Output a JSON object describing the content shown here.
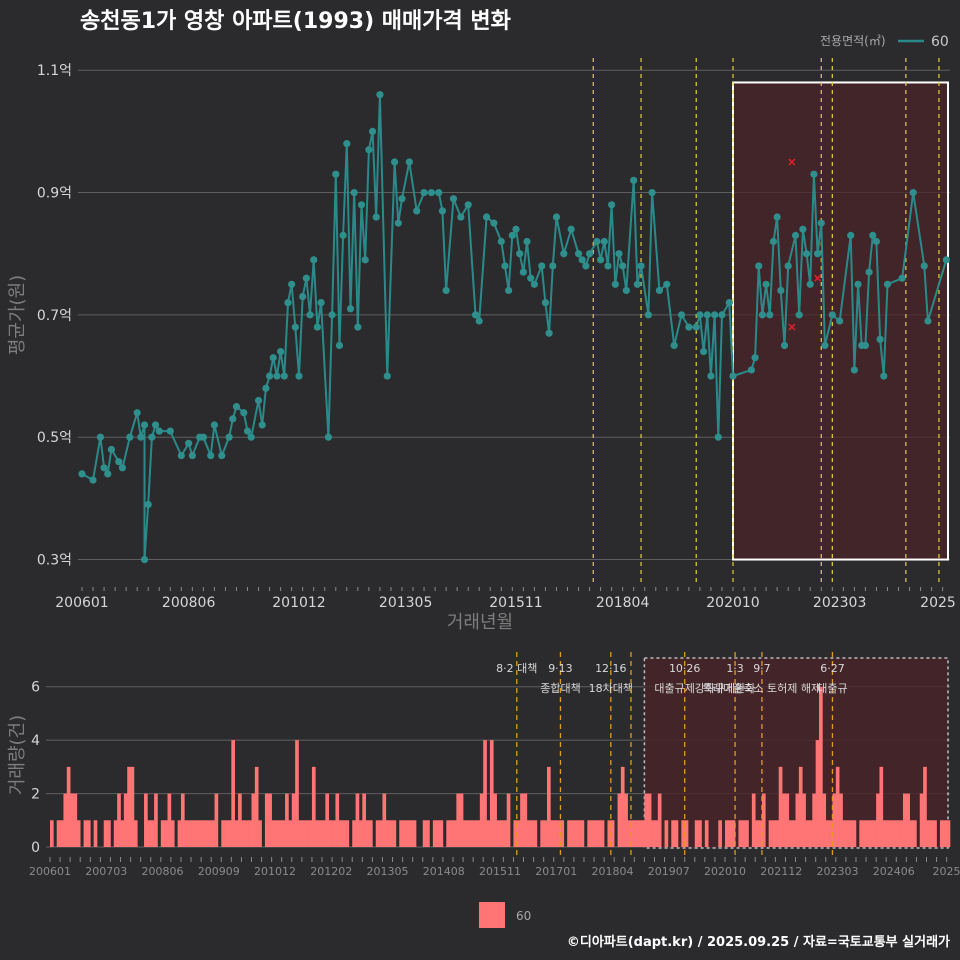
{
  "title": "송천동1가 영창 아파트(1993) 매매가격 변화",
  "footer": "©디아파트(dapt.kr) / 2025.09.25 / 자료=국토교통부 실거래가",
  "colors": {
    "background": "#2b2b2d",
    "price_line": "#2a8a8a",
    "price_point": "#2f8f8c",
    "bar": "#ff7575",
    "highlight_fill": "#4a2428",
    "policy_line_top": "#e5d334",
    "policy_line_bottom": "#e39a1c",
    "outlier": "#e0212a"
  },
  "chart_data": [
    {
      "type": "line",
      "title": "송천동1가 영창 아파트(1993) 매매가격 변화",
      "xlabel": "거래년월",
      "ylabel": "평균가(원)",
      "x_tick_labels": [
        "200601",
        "200806",
        "201012",
        "201305",
        "201511",
        "201804",
        "202010",
        "202303",
        "2025"
      ],
      "y_tick_labels": [
        "0.3억",
        "0.5억",
        "0.7억",
        "0.9억",
        "1.1억"
      ],
      "y_ticks": [
        0.3,
        0.5,
        0.7,
        0.9,
        1.1
      ],
      "ylim": [
        0.26,
        1.12
      ],
      "xlim": [
        "2006-01",
        "2025-09"
      ],
      "grid": true,
      "legend": {
        "title": "전용면적(㎡)",
        "entries": [
          "60"
        ],
        "placement": "top-right"
      },
      "highlight_range": [
        "2020-10",
        "2025-09"
      ],
      "policy_dates": [
        "2017-08",
        "2018-09",
        "2019-12",
        "2020-10",
        "2022-10",
        "2023-01",
        "2024-09",
        "2025-06"
      ],
      "outliers": [
        {
          "x": "2022-02",
          "y": 0.95
        },
        {
          "x": "2022-02",
          "y": 0.68
        },
        {
          "x": "2022-09",
          "y": 0.76
        }
      ],
      "series": [
        {
          "name": "60",
          "points": [
            [
              "2006-01",
              0.44
            ],
            [
              "2006-04",
              0.43
            ],
            [
              "2006-06",
              0.5
            ],
            [
              "2006-07",
              0.45
            ],
            [
              "2006-08",
              0.44
            ],
            [
              "2006-09",
              0.48
            ],
            [
              "2006-11",
              0.46
            ],
            [
              "2006-12",
              0.45
            ],
            [
              "2007-02",
              0.5
            ],
            [
              "2007-04",
              0.54
            ],
            [
              "2007-05",
              0.5
            ],
            [
              "2007-06",
              0.52
            ],
            [
              "2007-07",
              0.39
            ],
            [
              "2007-08",
              0.5
            ],
            [
              "2007-09",
              0.52
            ],
            [
              "2007-10",
              0.51
            ],
            [
              "2007-06",
              0.3
            ],
            [
              "2008-01",
              0.51
            ],
            [
              "2008-04",
              0.47
            ],
            [
              "2008-06",
              0.49
            ],
            [
              "2008-07",
              0.47
            ],
            [
              "2008-09",
              0.5
            ],
            [
              "2008-10",
              0.5
            ],
            [
              "2008-12",
              0.47
            ],
            [
              "2009-01",
              0.52
            ],
            [
              "2009-03",
              0.47
            ],
            [
              "2009-05",
              0.5
            ],
            [
              "2009-06",
              0.53
            ],
            [
              "2009-07",
              0.55
            ],
            [
              "2009-09",
              0.54
            ],
            [
              "2009-10",
              0.51
            ],
            [
              "2009-11",
              0.5
            ],
            [
              "2010-01",
              0.56
            ],
            [
              "2010-02",
              0.52
            ],
            [
              "2010-03",
              0.58
            ],
            [
              "2010-04",
              0.6
            ],
            [
              "2010-05",
              0.63
            ],
            [
              "2010-06",
              0.6
            ],
            [
              "2010-07",
              0.64
            ],
            [
              "2010-08",
              0.6
            ],
            [
              "2010-09",
              0.72
            ],
            [
              "2010-10",
              0.75
            ],
            [
              "2010-11",
              0.68
            ],
            [
              "2010-12",
              0.6
            ],
            [
              "2011-01",
              0.73
            ],
            [
              "2011-02",
              0.76
            ],
            [
              "2011-03",
              0.7
            ],
            [
              "2011-04",
              0.79
            ],
            [
              "2011-05",
              0.68
            ],
            [
              "2011-06",
              0.72
            ],
            [
              "2011-08",
              0.5
            ],
            [
              "2011-09",
              0.7
            ],
            [
              "2011-10",
              0.93
            ],
            [
              "2011-11",
              0.65
            ],
            [
              "2011-12",
              0.83
            ],
            [
              "2012-01",
              0.98
            ],
            [
              "2012-02",
              0.71
            ],
            [
              "2012-03",
              0.9
            ],
            [
              "2012-04",
              0.68
            ],
            [
              "2012-05",
              0.88
            ],
            [
              "2012-06",
              0.79
            ],
            [
              "2012-07",
              0.97
            ],
            [
              "2012-08",
              1.0
            ],
            [
              "2012-09",
              0.86
            ],
            [
              "2012-10",
              1.06
            ],
            [
              "2012-12",
              0.6
            ],
            [
              "2013-02",
              0.95
            ],
            [
              "2013-03",
              0.85
            ],
            [
              "2013-04",
              0.89
            ],
            [
              "2013-06",
              0.95
            ],
            [
              "2013-08",
              0.87
            ],
            [
              "2013-10",
              0.9
            ],
            [
              "2013-12",
              0.9
            ],
            [
              "2014-02",
              0.9
            ],
            [
              "2014-03",
              0.87
            ],
            [
              "2014-04",
              0.74
            ],
            [
              "2014-06",
              0.89
            ],
            [
              "2014-08",
              0.86
            ],
            [
              "2014-10",
              0.88
            ],
            [
              "2014-12",
              0.7
            ],
            [
              "2015-01",
              0.69
            ],
            [
              "2015-03",
              0.86
            ],
            [
              "2015-05",
              0.85
            ],
            [
              "2015-07",
              0.82
            ],
            [
              "2015-08",
              0.78
            ],
            [
              "2015-09",
              0.74
            ],
            [
              "2015-10",
              0.83
            ],
            [
              "2015-11",
              0.84
            ],
            [
              "2015-12",
              0.8
            ],
            [
              "2016-01",
              0.77
            ],
            [
              "2016-02",
              0.82
            ],
            [
              "2016-03",
              0.76
            ],
            [
              "2016-04",
              0.75
            ],
            [
              "2016-06",
              0.78
            ],
            [
              "2016-07",
              0.72
            ],
            [
              "2016-08",
              0.67
            ],
            [
              "2016-09",
              0.78
            ],
            [
              "2016-10",
              0.86
            ],
            [
              "2016-12",
              0.8
            ],
            [
              "2017-02",
              0.84
            ],
            [
              "2017-04",
              0.8
            ],
            [
              "2017-05",
              0.79
            ],
            [
              "2017-06",
              0.78
            ],
            [
              "2017-07",
              0.8
            ],
            [
              "2017-09",
              0.82
            ],
            [
              "2017-10",
              0.79
            ],
            [
              "2017-11",
              0.82
            ],
            [
              "2017-12",
              0.78
            ],
            [
              "2018-01",
              0.88
            ],
            [
              "2018-02",
              0.75
            ],
            [
              "2018-03",
              0.8
            ],
            [
              "2018-04",
              0.78
            ],
            [
              "2018-05",
              0.74
            ],
            [
              "2018-07",
              0.92
            ],
            [
              "2018-08",
              0.75
            ],
            [
              "2018-09",
              0.78
            ],
            [
              "2018-11",
              0.7
            ],
            [
              "2018-12",
              0.9
            ],
            [
              "2019-02",
              0.74
            ],
            [
              "2019-04",
              0.75
            ],
            [
              "2019-06",
              0.65
            ],
            [
              "2019-08",
              0.7
            ],
            [
              "2019-10",
              0.68
            ],
            [
              "2019-12",
              0.68
            ],
            [
              "2020-01",
              0.7
            ],
            [
              "2020-02",
              0.64
            ],
            [
              "2020-03",
              0.7
            ],
            [
              "2020-04",
              0.6
            ],
            [
              "2020-05",
              0.7
            ],
            [
              "2020-06",
              0.5
            ],
            [
              "2020-07",
              0.7
            ],
            [
              "2020-09",
              0.72
            ],
            [
              "2020-10",
              0.6
            ],
            [
              "2021-03",
              0.61
            ],
            [
              "2021-04",
              0.63
            ],
            [
              "2021-05",
              0.78
            ],
            [
              "2021-06",
              0.7
            ],
            [
              "2021-07",
              0.75
            ],
            [
              "2021-08",
              0.7
            ],
            [
              "2021-09",
              0.82
            ],
            [
              "2021-10",
              0.86
            ],
            [
              "2021-11",
              0.74
            ],
            [
              "2021-12",
              0.65
            ],
            [
              "2022-01",
              0.78
            ],
            [
              "2022-03",
              0.83
            ],
            [
              "2022-04",
              0.7
            ],
            [
              "2022-05",
              0.84
            ],
            [
              "2022-06",
              0.8
            ],
            [
              "2022-07",
              0.75
            ],
            [
              "2022-08",
              0.93
            ],
            [
              "2022-09",
              0.8
            ],
            [
              "2022-10",
              0.85
            ],
            [
              "2022-11",
              0.65
            ],
            [
              "2023-01",
              0.7
            ],
            [
              "2023-03",
              0.69
            ],
            [
              "2023-06",
              0.83
            ],
            [
              "2023-07",
              0.61
            ],
            [
              "2023-08",
              0.75
            ],
            [
              "2023-09",
              0.65
            ],
            [
              "2023-10",
              0.65
            ],
            [
              "2023-11",
              0.77
            ],
            [
              "2023-12",
              0.83
            ],
            [
              "2024-01",
              0.82
            ],
            [
              "2024-02",
              0.66
            ],
            [
              "2024-03",
              0.6
            ],
            [
              "2024-04",
              0.75
            ],
            [
              "2024-08",
              0.76
            ],
            [
              "2024-11",
              0.9
            ],
            [
              "2025-02",
              0.78
            ],
            [
              "2025-03",
              0.69
            ],
            [
              "2025-08",
              0.79
            ]
          ]
        }
      ]
    },
    {
      "type": "bar",
      "ylabel": "거래량(건)",
      "x_tick_labels": [
        "200601",
        "200703",
        "200806",
        "200909",
        "201012",
        "201202",
        "201305",
        "201408",
        "201511",
        "201701",
        "201804",
        "201907",
        "202010",
        "202112",
        "202303",
        "202406",
        "20250"
      ],
      "y_tick_labels": [
        "0",
        "2",
        "4",
        "6"
      ],
      "ylim": [
        0,
        7
      ],
      "legend": {
        "entries": [
          "60"
        ],
        "placement": "bottom"
      },
      "highlight_range": [
        "2020-10",
        "2025-09"
      ],
      "policy_annotations": [
        {
          "date": "2017-08",
          "label": "8·2 대책"
        },
        {
          "date": "2018-09",
          "label": "9·13",
          "label2": "종합대책"
        },
        {
          "date": "2019-12",
          "label": "12·16",
          "label2": "18차대책"
        },
        {
          "date": "2020-06",
          "label": ""
        },
        {
          "date": "2021-10",
          "label": "10·26",
          "label2": "대출규제강화"
        },
        {
          "date": "2023-01",
          "label": "1·3",
          "label2": "규제완화"
        },
        {
          "date": "2023-09",
          "label": "9·7",
          "label2": "특례대출축소 토허제 해제"
        },
        {
          "date": "2025-06",
          "label": "6·27",
          "label2": "대출규"
        }
      ],
      "series": [
        {
          "name": "60",
          "monthly_counts_from_2006_01": [
            1,
            0,
            1,
            1,
            2,
            3,
            2,
            2,
            1,
            0,
            1,
            1,
            0,
            1,
            0,
            0,
            1,
            1,
            0,
            1,
            2,
            1,
            2,
            3,
            3,
            1,
            0,
            0,
            2,
            1,
            1,
            2,
            0,
            1,
            1,
            2,
            1,
            0,
            1,
            2,
            1,
            1,
            1,
            1,
            1,
            1,
            1,
            1,
            1,
            2,
            0,
            1,
            1,
            1,
            4,
            1,
            2,
            1,
            1,
            1,
            2,
            3,
            1,
            0,
            2,
            2,
            1,
            1,
            1,
            1,
            2,
            1,
            2,
            4,
            1,
            1,
            1,
            1,
            3,
            1,
            1,
            1,
            2,
            1,
            1,
            2,
            1,
            1,
            1,
            0,
            1,
            2,
            1,
            2,
            1,
            1,
            0,
            1,
            1,
            2,
            1,
            1,
            1,
            0,
            1,
            1,
            1,
            1,
            1,
            0,
            0,
            1,
            1,
            0,
            1,
            1,
            1,
            0,
            1,
            1,
            1,
            2,
            2,
            1,
            1,
            1,
            1,
            1,
            2,
            4,
            1,
            4,
            2,
            1,
            1,
            1,
            2,
            0,
            1,
            1,
            2,
            2,
            1,
            1,
            1,
            0,
            1,
            1,
            3,
            1,
            1,
            1,
            1,
            0,
            1,
            1,
            1,
            1,
            1,
            0,
            1,
            1,
            1,
            1,
            1,
            0,
            1,
            1,
            0,
            2,
            3,
            2,
            1,
            1,
            1,
            1,
            1,
            2,
            2,
            1,
            1,
            2,
            0,
            1,
            0,
            1,
            1,
            0,
            1,
            1,
            0,
            0,
            1,
            1,
            0,
            1,
            0,
            0,
            0,
            1,
            0,
            1,
            1,
            1,
            0,
            1,
            1,
            1,
            0,
            2,
            1,
            1,
            2,
            0,
            1,
            1,
            1,
            3,
            2,
            2,
            1,
            1,
            2,
            3,
            2,
            1,
            1,
            2,
            4,
            6,
            2,
            1,
            1,
            2,
            3,
            2,
            1,
            1,
            1,
            1,
            0,
            1,
            1,
            1,
            1,
            1,
            2,
            3,
            1,
            1,
            1,
            1,
            1,
            1,
            2,
            2,
            1,
            1,
            0,
            2,
            3,
            1,
            1,
            1,
            0,
            1,
            1,
            1
          ]
        }
      ]
    }
  ]
}
